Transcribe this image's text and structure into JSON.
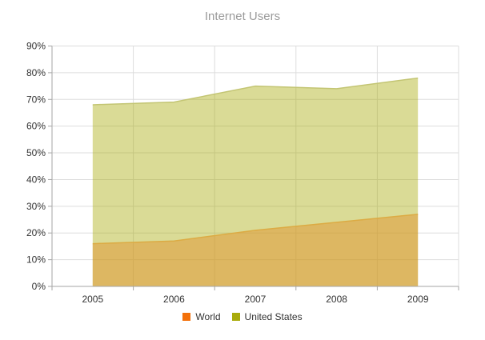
{
  "title": "Internet Users",
  "legend": [
    {
      "label": "World",
      "swatch_color": "#f3700a"
    },
    {
      "label": "United States",
      "swatch_color": "#a9ab0b"
    }
  ],
  "chart_data": {
    "type": "area",
    "title": "Internet Users",
    "categories": [
      "2005",
      "2006",
      "2007",
      "2008",
      "2009"
    ],
    "series": [
      {
        "name": "World",
        "values": [
          16,
          17,
          21,
          24,
          27
        ],
        "line_color": "#dcab44",
        "fill_color": "rgba(224,148,45,0.5)"
      },
      {
        "name": "United States",
        "values": [
          68,
          69,
          75,
          74,
          78
        ],
        "line_color": "#c3c573",
        "fill_color": "rgba(168,170,5,0.42)"
      }
    ],
    "ylim": [
      0,
      90
    ],
    "ytick_values": [
      0,
      10,
      20,
      30,
      40,
      50,
      60,
      70,
      80,
      90
    ],
    "ytick_labels": [
      "0%",
      "10%",
      "20%",
      "30%",
      "40%",
      "50%",
      "60%",
      "70%",
      "80%",
      "90%"
    ],
    "grid": true,
    "legend_position": "bottom",
    "colors": {
      "grid": "#dddddd",
      "axis": "#a6a6a6",
      "tick_label": "#333333",
      "title": "#9a9a9a"
    }
  }
}
